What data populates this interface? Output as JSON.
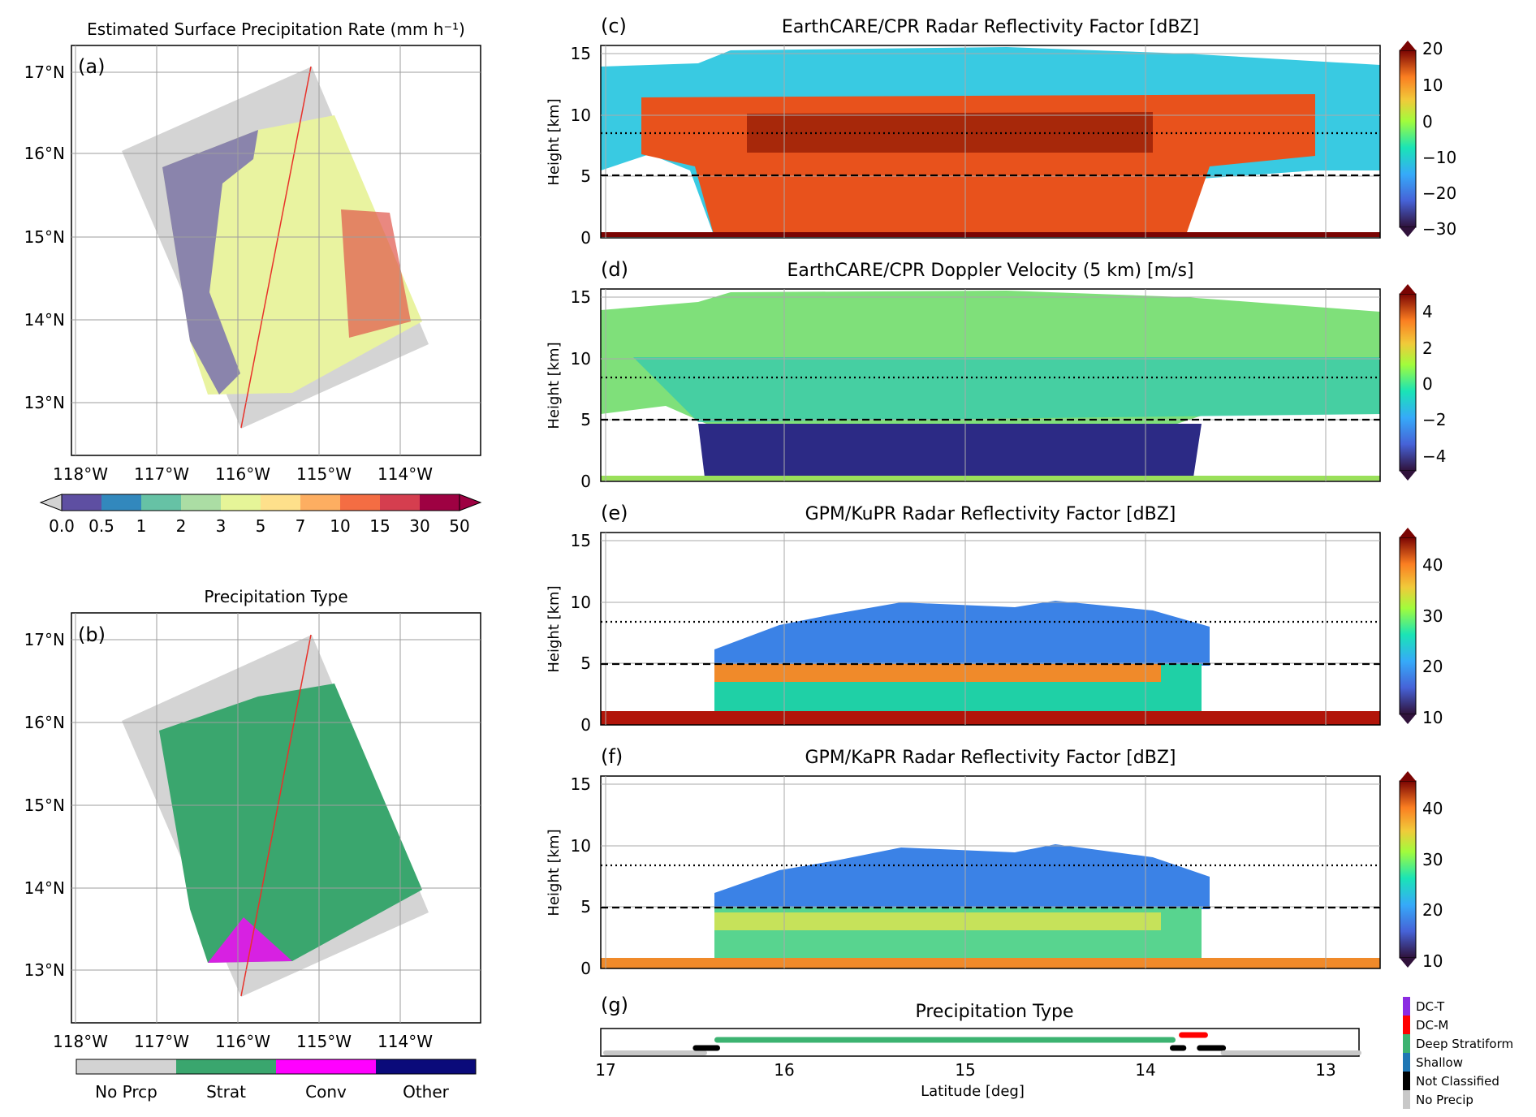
{
  "chart_data": [
    {
      "id": "a",
      "type": "heatmap",
      "panel_label": "(a)",
      "title": "Estimated Surface Precipitation Rate (mm h⁻¹)",
      "xticks": [
        "118°W",
        "117°W",
        "116°W",
        "115°W",
        "114°W"
      ],
      "yticks": [
        "17°N",
        "16°N",
        "15°N",
        "14°N",
        "13°N"
      ],
      "colorbar": {
        "labels": [
          "0.0",
          "0.5",
          "1",
          "2",
          "3",
          "5",
          "7",
          "10",
          "15",
          "30",
          "50"
        ],
        "colors": [
          "#5e4fa2",
          "#3288bd",
          "#66c2a5",
          "#abdda4",
          "#e6f598",
          "#fee08b",
          "#fdae61",
          "#f46d43",
          "#d53e4f",
          "#9e0142"
        ]
      }
    },
    {
      "id": "b",
      "type": "heatmap",
      "panel_label": "(b)",
      "title": "Precipitation Type",
      "xticks": [
        "118°W",
        "117°W",
        "116°W",
        "115°W",
        "114°W"
      ],
      "yticks": [
        "17°N",
        "16°N",
        "15°N",
        "14°N",
        "13°N"
      ],
      "legend": [
        {
          "label": "No Prcp",
          "color": "#d3d3d3"
        },
        {
          "label": "Strat",
          "color": "#3aa66e"
        },
        {
          "label": "Conv",
          "color": "#ff00ff"
        },
        {
          "label": "Other",
          "color": "#0a0a7a"
        }
      ]
    },
    {
      "id": "c",
      "type": "heatmap",
      "panel_label": "(c)",
      "title": "EarthCARE/CPR Radar Reflectivity Factor [dBZ]",
      "ylabel": "Height [km]",
      "yticks": [
        "0",
        "5",
        "10",
        "15"
      ],
      "ylim": [
        0,
        16
      ],
      "xlim": [
        17.0,
        12.7
      ],
      "reference_lines_km": [
        5.1,
        8.5
      ],
      "colorbar_ticks": [
        "20",
        "10",
        "0",
        "−10",
        "−20",
        "−30"
      ]
    },
    {
      "id": "d",
      "type": "heatmap",
      "panel_label": "(d)",
      "title": "EarthCARE/CPR Doppler Velocity (5 km) [m/s]",
      "ylabel": "Height [km]",
      "yticks": [
        "0",
        "5",
        "10",
        "15"
      ],
      "ylim": [
        0,
        16
      ],
      "xlim": [
        17.0,
        12.7
      ],
      "reference_lines_km": [
        5.1,
        8.5
      ],
      "colorbar_ticks": [
        "4",
        "2",
        "0",
        "−2",
        "−4"
      ]
    },
    {
      "id": "e",
      "type": "heatmap",
      "panel_label": "(e)",
      "title": "GPM/KuPR Radar Reflectivity Factor [dBZ]",
      "ylabel": "Height [km]",
      "yticks": [
        "0",
        "5",
        "10",
        "15"
      ],
      "ylim": [
        0,
        16
      ],
      "xlim": [
        17.0,
        12.7
      ],
      "reference_lines_km": [
        5.1,
        8.5
      ],
      "colorbar_ticks": [
        "40",
        "30",
        "20",
        "10"
      ]
    },
    {
      "id": "f",
      "type": "heatmap",
      "panel_label": "(f)",
      "title": "GPM/KaPR Radar Reflectivity Factor [dBZ]",
      "ylabel": "Height [km]",
      "yticks": [
        "0",
        "5",
        "10",
        "15"
      ],
      "ylim": [
        0,
        16
      ],
      "xlim": [
        17.0,
        12.7
      ],
      "reference_lines_km": [
        5.1,
        8.5
      ],
      "colorbar_ticks": [
        "40",
        "30",
        "20",
        "10"
      ]
    },
    {
      "id": "g",
      "type": "scatter",
      "panel_label": "(g)",
      "title": "Precipitation Type",
      "xlabel": "Latitude [deg]",
      "xticks": [
        "17",
        "16",
        "15",
        "14",
        "13"
      ],
      "xlim": [
        17.0,
        12.7
      ],
      "legend": [
        {
          "label": "DC-T",
          "color": "#8b2be2"
        },
        {
          "label": "DC-M",
          "color": "#ff0000"
        },
        {
          "label": "Deep Stratiform",
          "color": "#3cb371"
        },
        {
          "label": "Shallow",
          "color": "#1f77b4"
        },
        {
          "label": "Not Classified",
          "color": "#000000"
        },
        {
          "label": "No Precip",
          "color": "#c8c8c8"
        }
      ],
      "segments": [
        {
          "class": "No Precip",
          "from": 17.0,
          "to": 16.45
        },
        {
          "class": "Not Classified",
          "from": 16.5,
          "to": 16.38
        },
        {
          "class": "Deep Stratiform",
          "from": 16.38,
          "to": 13.85
        },
        {
          "class": "DC-M",
          "from": 13.8,
          "to": 13.67
        },
        {
          "class": "Not Classified",
          "from": 13.85,
          "to": 13.79
        },
        {
          "class": "Not Classified",
          "from": 13.7,
          "to": 13.57
        },
        {
          "class": "No Precip",
          "from": 13.57,
          "to": 12.7
        }
      ]
    }
  ]
}
